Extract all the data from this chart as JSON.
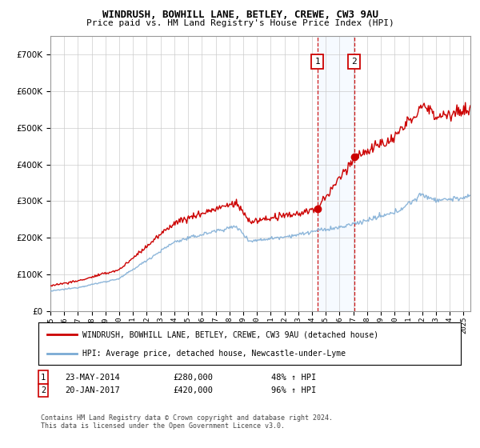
{
  "title": "WINDRUSH, BOWHILL LANE, BETLEY, CREWE, CW3 9AU",
  "subtitle": "Price paid vs. HM Land Registry's House Price Index (HPI)",
  "legend_line1": "WINDRUSH, BOWHILL LANE, BETLEY, CREWE, CW3 9AU (detached house)",
  "legend_line2": "HPI: Average price, detached house, Newcastle-under-Lyme",
  "annotation1_label": "1",
  "annotation2_label": "2",
  "annotation1_date": "23-MAY-2014",
  "annotation1_price": "£280,000",
  "annotation1_hpi": "48% ↑ HPI",
  "annotation2_date": "20-JAN-2017",
  "annotation2_price": "£420,000",
  "annotation2_hpi": "96% ↑ HPI",
  "footnote": "Contains HM Land Registry data © Crown copyright and database right 2024.\nThis data is licensed under the Open Government Licence v3.0.",
  "sale1_year": 2014.38,
  "sale1_value": 280000,
  "sale2_year": 2017.05,
  "sale2_value": 420000,
  "hpi_color": "#7aaad4",
  "price_color": "#cc0000",
  "annotation_box_color": "#cc0000",
  "shade_color": "#ddeeff",
  "vline_color": "#cc0000",
  "ylim": [
    0,
    750000
  ],
  "xlim_start": 1995,
  "xlim_end": 2025.5,
  "background_color": "#ffffff",
  "grid_color": "#cccccc"
}
